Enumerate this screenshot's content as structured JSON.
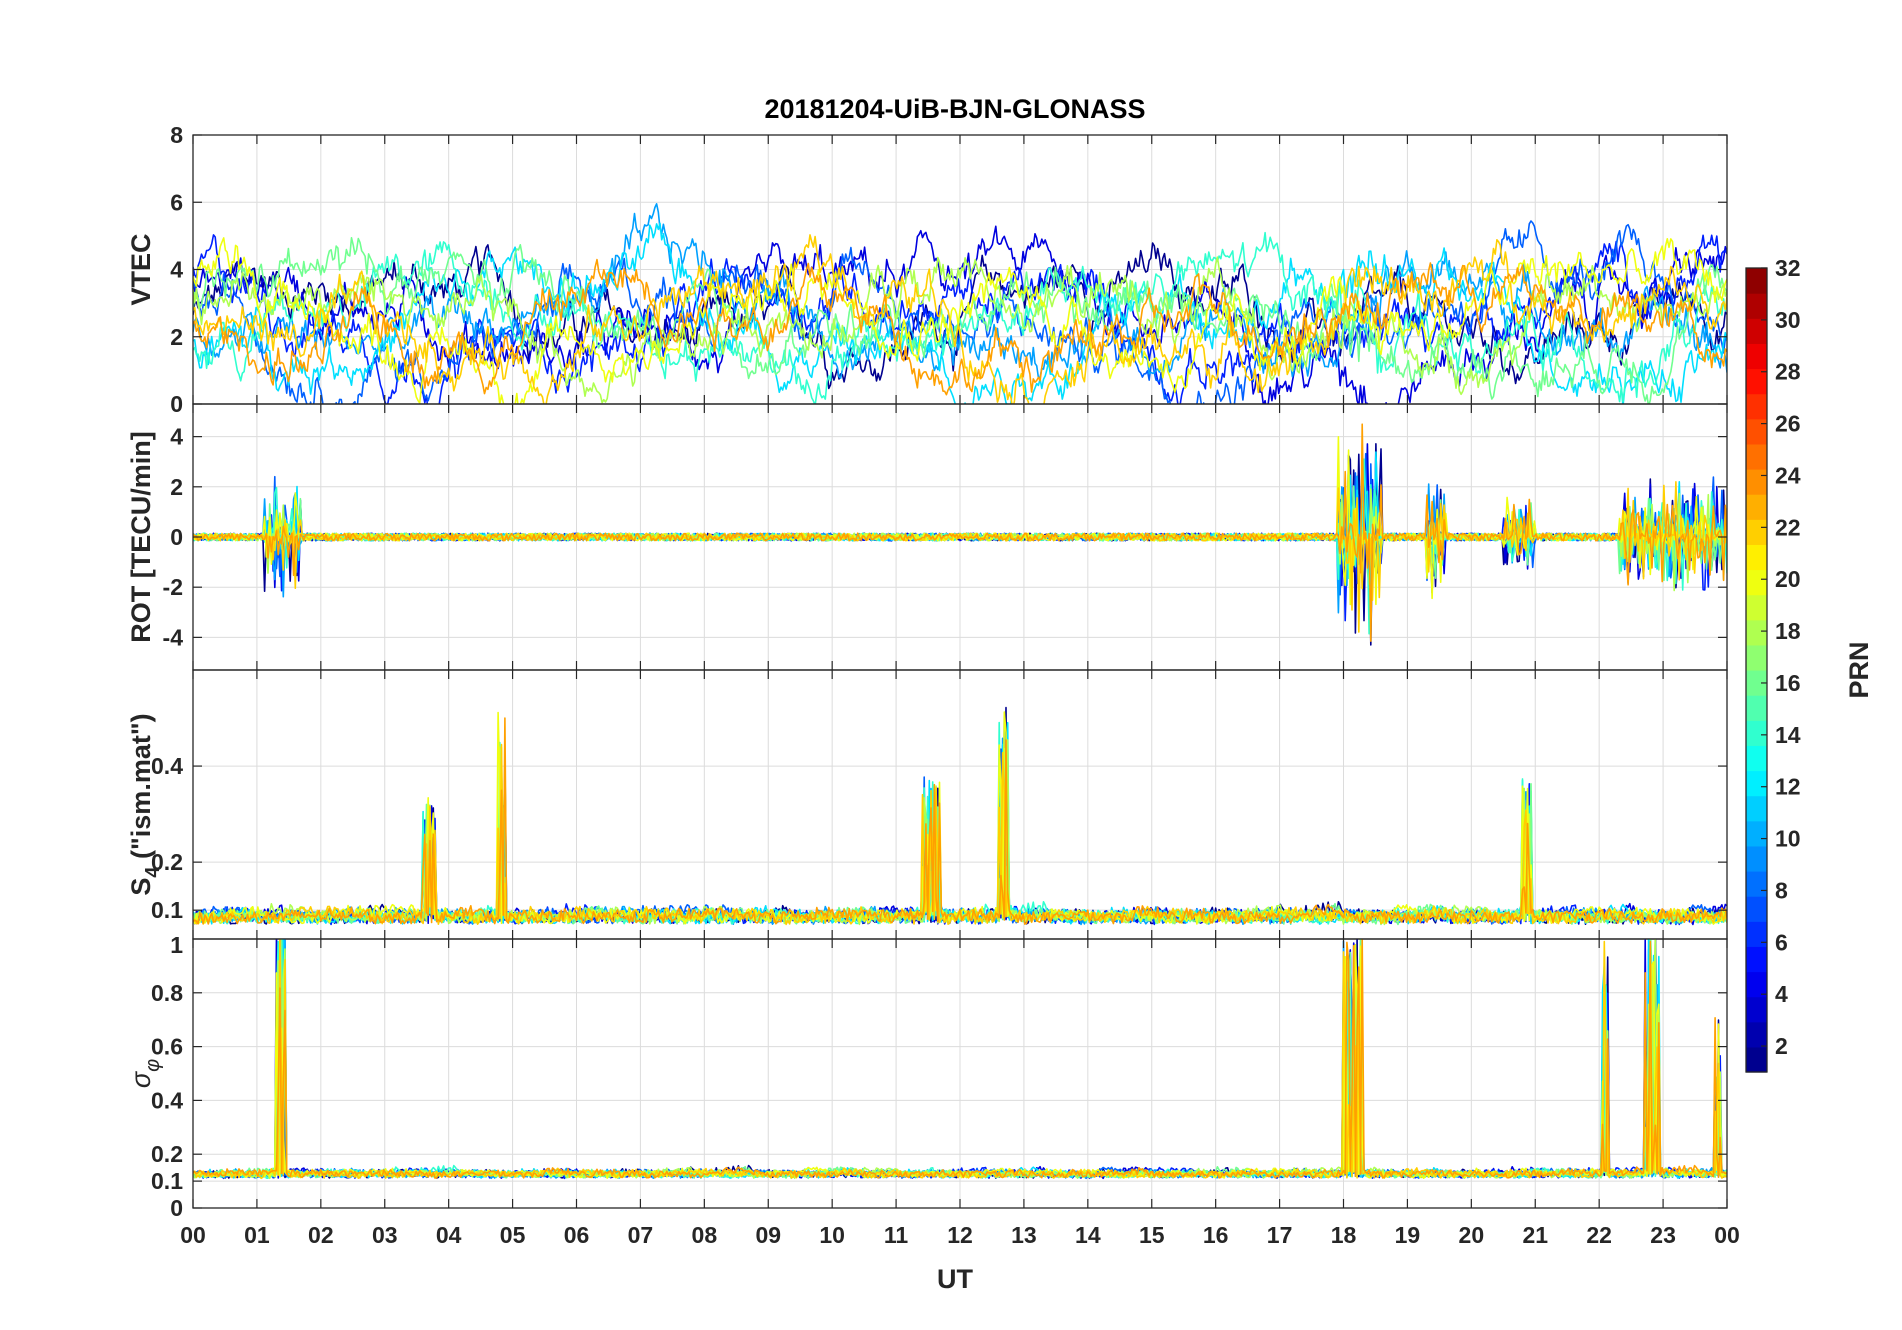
{
  "chart_data": {
    "type": "line",
    "title": "20181204-UiB-BJN-GLONASS",
    "xlabel": "UT",
    "x_tick_labels": [
      "00",
      "01",
      "02",
      "03",
      "04",
      "05",
      "06",
      "07",
      "08",
      "09",
      "10",
      "11",
      "12",
      "13",
      "14",
      "15",
      "16",
      "17",
      "18",
      "19",
      "20",
      "21",
      "22",
      "23",
      "00"
    ],
    "xlim": [
      0,
      24
    ],
    "grid": true,
    "panels": [
      {
        "name": "VTEC",
        "ylabel": "VTEC",
        "ylim": [
          0,
          8
        ],
        "y_ticks": [
          0,
          2,
          4,
          6,
          8
        ],
        "y_tick_labels": [
          "0",
          "2",
          "4",
          "6",
          "8"
        ],
        "baseline": 2.6,
        "spread": 1.0,
        "disturbed_windows": [
          [
            17.8,
            18.6,
            2.5
          ],
          [
            1.0,
            1.8,
            1.0
          ],
          [
            22.2,
            24.0,
            1.2
          ]
        ]
      },
      {
        "name": "ROT",
        "ylabel": "ROT [TECU/min]",
        "ylim": [
          -5.3,
          5.3
        ],
        "y_ticks": [
          -4,
          -2,
          0,
          2,
          4
        ],
        "y_tick_labels": [
          "-4",
          "-2",
          "0",
          "2",
          "4"
        ],
        "baseline": 0,
        "spread": 0.25,
        "disturbed_windows": [
          [
            1.1,
            1.7,
            2.5
          ],
          [
            17.9,
            18.6,
            5.0
          ],
          [
            19.3,
            19.6,
            2.5
          ],
          [
            22.3,
            24.0,
            2.5
          ],
          [
            20.5,
            21.0,
            1.8
          ]
        ]
      },
      {
        "name": "S4",
        "ylabel_main": "S",
        "ylabel_sub": "4",
        "ylabel_rest": " (\"ism.mat\")",
        "ylim": [
          0.04,
          0.6
        ],
        "y_ticks": [
          0.1,
          0.2,
          0.4
        ],
        "y_tick_labels": [
          "0.1",
          "0.2",
          "0.4"
        ],
        "baseline": 0.07,
        "spread": 0.03,
        "disturbed_windows": [
          [
            4.75,
            4.9,
            0.45
          ],
          [
            12.6,
            12.75,
            0.45
          ],
          [
            11.4,
            11.7,
            0.3
          ],
          [
            20.8,
            20.95,
            0.3
          ],
          [
            3.6,
            3.8,
            0.25
          ]
        ]
      },
      {
        "name": "sigma_phi",
        "ylabel_symbol": "σ",
        "ylabel_sub": "φ",
        "ylim": [
          0,
          1
        ],
        "y_ticks": [
          0,
          0.1,
          0.2,
          0.4,
          0.6,
          0.8
        ],
        "y_tick_labels": [
          "0",
          "0.1",
          "0.2",
          "0.4",
          "0.6",
          "0.8"
        ],
        "top_tick_label": "1",
        "baseline": 0.11,
        "spread": 0.03,
        "disturbed_windows": [
          [
            1.3,
            1.45,
            0.95
          ],
          [
            18.0,
            18.3,
            0.9
          ],
          [
            22.05,
            22.15,
            0.9
          ],
          [
            22.7,
            22.95,
            0.95
          ],
          [
            23.8,
            23.9,
            0.6
          ]
        ]
      }
    ],
    "colorbar": {
      "label": "PRN",
      "range": [
        1,
        32
      ],
      "ticks": [
        2,
        4,
        6,
        8,
        10,
        12,
        14,
        16,
        18,
        20,
        22,
        24,
        26,
        28,
        30,
        32
      ],
      "tick_labels": [
        "2",
        "4",
        "6",
        "8",
        "10",
        "12",
        "14",
        "16",
        "18",
        "20",
        "22",
        "24",
        "26",
        "28",
        "30",
        "32"
      ],
      "colormap": "jet",
      "levels": 32
    },
    "series": [
      {
        "name": "PRN 1",
        "prn": 1,
        "color": "#00008f"
      },
      {
        "name": "PRN 3",
        "prn": 3,
        "color": "#0000df"
      },
      {
        "name": "PRN 5",
        "prn": 5,
        "color": "#0020ff"
      },
      {
        "name": "PRN 7",
        "prn": 7,
        "color": "#0060ff"
      },
      {
        "name": "PRN 9",
        "prn": 9,
        "color": "#00a0ff"
      },
      {
        "name": "PRN 11",
        "prn": 11,
        "color": "#00dfff"
      },
      {
        "name": "PRN 13",
        "prn": 13,
        "color": "#30ffcf"
      },
      {
        "name": "PRN 15",
        "prn": 15,
        "color": "#70ff8f"
      },
      {
        "name": "PRN 17",
        "prn": 17,
        "color": "#afff50"
      },
      {
        "name": "PRN 19",
        "prn": 19,
        "color": "#efff10"
      },
      {
        "name": "PRN 21",
        "prn": 21,
        "color": "#ffcf00"
      },
      {
        "name": "PRN 22",
        "prn": 22,
        "color": "#ffa000"
      }
    ]
  }
}
